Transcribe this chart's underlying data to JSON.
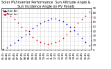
{
  "title": "Solar PV/Inverter Performance  Sun Altitude Angle & Sun Incidence Angle on PV Panels",
  "y_right_ticks": [
    0,
    10,
    20,
    30,
    40,
    50,
    60,
    70,
    80,
    90
  ],
  "y_right_labels": [
    "0",
    "10",
    "20",
    "30",
    "40",
    "50",
    "60",
    "70",
    "80",
    "90"
  ],
  "ylim": [
    0,
    90
  ],
  "background_color": "#ffffff",
  "grid_color": "#888888",
  "blue_color": "#0000dd",
  "red_color": "#dd0000",
  "x_tick_labels": [
    "05:15",
    "05:45",
    "06:15",
    "06:45",
    "07:15",
    "07:45",
    "08:15",
    "08:45",
    "09:15",
    "09:45",
    "10:15",
    "10:45",
    "11:15",
    "11:45",
    "12:15",
    "12:45",
    "13:15",
    "13:45",
    "14:15",
    "14:45",
    "15:15",
    "15:45",
    "16:15",
    "16:45"
  ],
  "sun_alt_x": [
    0,
    1,
    2,
    3,
    4,
    5,
    6,
    7,
    8,
    9,
    10,
    11,
    12,
    13,
    14,
    15,
    16,
    17,
    18,
    19,
    20,
    21,
    22,
    23
  ],
  "sun_alt_y": [
    2,
    5,
    10,
    15,
    21,
    27,
    33,
    40,
    46,
    52,
    57,
    62,
    65,
    67,
    67,
    65,
    61,
    56,
    49,
    42,
    34,
    26,
    17,
    9
  ],
  "sun_inc_x": [
    0,
    1,
    2,
    3,
    4,
    5,
    6,
    7,
    8,
    9,
    10,
    11,
    12,
    13,
    14,
    15,
    16,
    17,
    18,
    19,
    20,
    21,
    22,
    23
  ],
  "sun_inc_y": [
    85,
    80,
    73,
    66,
    58,
    50,
    42,
    34,
    27,
    21,
    16,
    13,
    12,
    13,
    16,
    20,
    26,
    33,
    41,
    50,
    58,
    66,
    74,
    82
  ],
  "legend_labels": [
    "Sun Alt",
    "Sun Inc"
  ],
  "title_fontsize": 3.5,
  "tick_fontsize": 2.8,
  "legend_fontsize": 2.8,
  "marker_size": 1.5
}
